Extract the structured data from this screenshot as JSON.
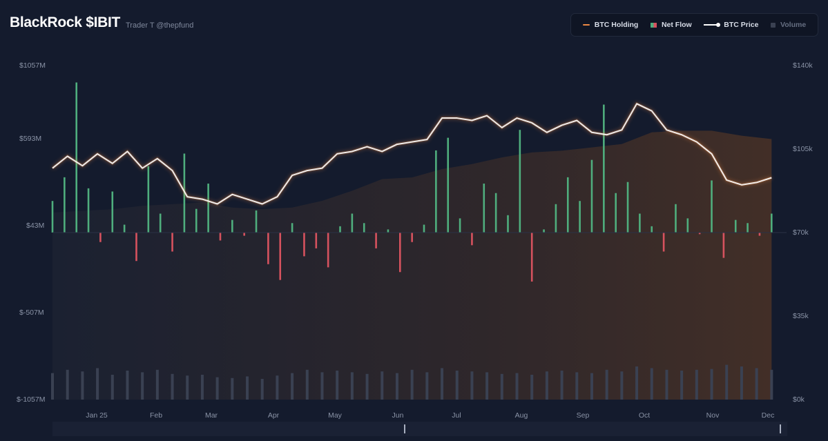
{
  "header": {
    "title": "BlackRock $IBIT",
    "subtitle": "Trader T @thepfund"
  },
  "legend": [
    {
      "label": "BTC Holding",
      "icon": "line-swatch-orange",
      "active": true
    },
    {
      "label": "Net Flow",
      "icon": "bar-swatch-green-red",
      "active": true
    },
    {
      "label": "BTC Price",
      "icon": "line-dot-swatch-white",
      "active": true
    },
    {
      "label": "Volume",
      "icon": "square-swatch-gray",
      "active": false
    }
  ],
  "colors": {
    "inflow": "#4fae7d",
    "outflow": "#d6525e",
    "price": "#ffffff",
    "holding_fill": "#3a2a24",
    "holding_glow": "#ee8a45",
    "volume": "#3a4152",
    "background": "#141b2d"
  },
  "chart_data": {
    "type": "bar",
    "title": "BlackRock $IBIT",
    "x_ticks": [
      "Jan 25",
      "Feb",
      "Mar",
      "Apr",
      "May",
      "Jun",
      "Jul",
      "Aug",
      "Sep",
      "Oct",
      "Nov",
      "Dec"
    ],
    "y_left_ticks": [
      "$1057M",
      "$593M",
      "$43M",
      "$-507M",
      "$-1057M"
    ],
    "y_right_ticks": [
      "$140k",
      "$105k",
      "$70k",
      "$35k",
      "$0k"
    ],
    "y_left_lim": [
      -1057,
      1057
    ],
    "y_right_lim": [
      0,
      140000
    ],
    "x_range_weeks": [
      -2,
      47
    ],
    "grid": false,
    "legend_position": "top-right",
    "series": [
      {
        "name": "Net Flow",
        "unit": "$M",
        "x_weeks": [
          -2,
          -1.2,
          -0.4,
          0.4,
          1.2,
          2,
          2.8,
          3.6,
          4.4,
          5.2,
          6,
          6.8,
          7.6,
          8.4,
          9.2,
          10,
          10.8,
          11.6,
          12.4,
          13.2,
          14,
          14.8,
          15.6,
          16.4,
          17.2,
          18,
          18.8,
          19.6,
          20.4,
          21.2,
          22,
          22.8,
          23.6,
          24.4,
          25.2,
          26,
          26.8,
          27.6,
          28.4,
          29.2,
          30,
          30.8,
          31.6,
          32.4,
          33.2,
          34,
          34.8,
          35.6,
          36.4,
          37.2,
          38,
          38.8,
          39.6,
          40.4,
          41.2,
          42,
          42.8,
          43.6,
          44.4,
          45.2,
          46
        ],
        "values": [
          200,
          350,
          950,
          280,
          -60,
          260,
          50,
          -180,
          420,
          120,
          -120,
          500,
          150,
          310,
          -50,
          80,
          -20,
          140,
          -200,
          -300,
          60,
          -150,
          -100,
          -220,
          40,
          120,
          60,
          -100,
          20,
          -250,
          -60,
          50,
          520,
          600,
          90,
          -80,
          310,
          250,
          110,
          650,
          -310,
          20,
          180,
          350,
          200,
          460,
          810,
          250,
          320,
          120,
          40,
          -120,
          180,
          90,
          -10,
          330,
          -160,
          80,
          60,
          -20,
          120
        ]
      },
      {
        "name": "BTC Price",
        "unit": "$",
        "x_weeks": [
          -2,
          -1,
          0,
          1,
          2,
          3,
          4,
          5,
          6,
          7,
          8,
          9,
          10,
          11,
          12,
          13,
          14,
          15,
          16,
          17,
          18,
          19,
          20,
          21,
          22,
          23,
          24,
          25,
          26,
          27,
          28,
          29,
          30,
          31,
          32,
          33,
          34,
          35,
          36,
          37,
          38,
          39,
          40,
          41,
          42,
          43,
          44,
          45,
          46
        ],
        "values": [
          97000,
          102000,
          98000,
          103000,
          99000,
          104000,
          97000,
          101000,
          96000,
          85000,
          84000,
          82000,
          86000,
          84000,
          82000,
          85000,
          94000,
          96000,
          97000,
          103000,
          104000,
          106000,
          104000,
          107000,
          108000,
          109000,
          118000,
          118000,
          117000,
          119000,
          114000,
          118000,
          116000,
          112000,
          115000,
          117000,
          112000,
          111000,
          113000,
          124000,
          121000,
          113000,
          111000,
          108000,
          103000,
          92000,
          90000,
          91000,
          93000
        ]
      },
      {
        "name": "BTC Holding",
        "unit": "BTC",
        "x_weeks": [
          -2,
          0,
          2,
          4,
          6,
          8,
          10,
          12,
          14,
          16,
          18,
          20,
          22,
          24,
          26,
          28,
          30,
          32,
          34,
          36,
          38,
          40,
          42,
          44,
          46
        ],
        "values": [
          560000,
          565000,
          570000,
          580000,
          585000,
          590000,
          575000,
          570000,
          575000,
          595000,
          625000,
          660000,
          665000,
          690000,
          705000,
          725000,
          740000,
          745000,
          755000,
          765000,
          800000,
          805000,
          805000,
          790000,
          780000
        ]
      },
      {
        "name": "Volume",
        "unit": "$M",
        "x_weeks": [
          -2,
          -1,
          0,
          1,
          2,
          3,
          4,
          5,
          6,
          7,
          8,
          9,
          10,
          11,
          12,
          13,
          14,
          15,
          16,
          17,
          18,
          19,
          20,
          21,
          22,
          23,
          24,
          25,
          26,
          27,
          28,
          29,
          30,
          31,
          32,
          33,
          34,
          35,
          36,
          37,
          38,
          39,
          40,
          41,
          42,
          43,
          44,
          45,
          46
        ],
        "values": [
          3200,
          3600,
          3400,
          3800,
          3000,
          3500,
          3300,
          3600,
          3100,
          2900,
          3000,
          2700,
          2600,
          2800,
          2500,
          2900,
          3200,
          3600,
          3300,
          3500,
          3300,
          3100,
          3400,
          3200,
          3600,
          3300,
          3800,
          3500,
          3400,
          3300,
          3100,
          3200,
          3000,
          3400,
          3500,
          3300,
          3200,
          3600,
          3400,
          4000,
          3800,
          3600,
          3500,
          3600,
          3700,
          4200,
          4000,
          3800,
          3600
        ]
      }
    ]
  }
}
